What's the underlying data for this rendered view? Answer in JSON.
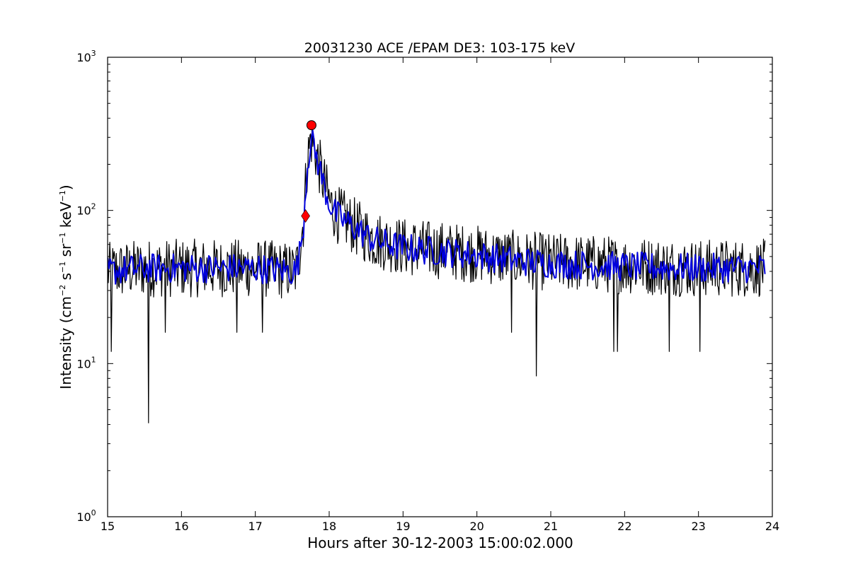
{
  "chart_data": {
    "type": "line",
    "title": "20031230 ACE /EPAM DE3: 103-175 keV",
    "xlabel": "Hours after 30-12-2003 15:00:02.000",
    "ylabel_parts": [
      "Intensity (cm",
      "−2",
      " s",
      "−1",
      " sr",
      "−1",
      " keV",
      "−1",
      ")"
    ],
    "xlim": [
      15,
      24
    ],
    "ylim": [
      1,
      1000
    ],
    "yscale": "log",
    "x_ticks": [
      "15",
      "16",
      "17",
      "18",
      "19",
      "20",
      "21",
      "22",
      "23",
      "24"
    ],
    "y_ticks": [
      {
        "base": "10",
        "exp": "0",
        "value": 1
      },
      {
        "base": "10",
        "exp": "1",
        "value": 10
      },
      {
        "base": "10",
        "exp": "2",
        "value": 100
      },
      {
        "base": "10",
        "exp": "3",
        "value": 1000
      }
    ],
    "grid": false,
    "series": [
      {
        "style": "raw",
        "color": "#000000",
        "x_start": 15.0,
        "x_end": 23.9,
        "values_approx": "noisy intensity ~25-65 baseline, rising from ~17.6 h to peak ~360 at 17.75 h, decaying to ~50 by 19 h",
        "envelope": [
          [
            15.0,
            40
          ],
          [
            15.5,
            42
          ],
          [
            16.0,
            42
          ],
          [
            16.5,
            42
          ],
          [
            17.0,
            42
          ],
          [
            17.55,
            40
          ],
          [
            17.6,
            55
          ],
          [
            17.65,
            85
          ],
          [
            17.7,
            200
          ],
          [
            17.75,
            300
          ],
          [
            17.8,
            260
          ],
          [
            17.85,
            210
          ],
          [
            17.9,
            170
          ],
          [
            17.95,
            140
          ],
          [
            18.0,
            115
          ],
          [
            18.1,
            95
          ],
          [
            18.2,
            88
          ],
          [
            18.4,
            75
          ],
          [
            18.6,
            65
          ],
          [
            19.0,
            58
          ],
          [
            19.5,
            55
          ],
          [
            20.0,
            52
          ],
          [
            20.5,
            48
          ],
          [
            21.0,
            46
          ],
          [
            22.0,
            44
          ],
          [
            23.0,
            42
          ],
          [
            23.9,
            42
          ]
        ],
        "dips": [
          [
            15.05,
            12
          ],
          [
            15.55,
            4.1
          ],
          [
            15.78,
            16
          ],
          [
            16.75,
            16
          ],
          [
            17.1,
            16
          ],
          [
            20.47,
            16
          ],
          [
            20.8,
            8.3
          ],
          [
            21.85,
            12
          ],
          [
            21.9,
            12
          ],
          [
            22.6,
            12
          ],
          [
            23.02,
            12
          ]
        ]
      },
      {
        "style": "smoothed",
        "color": "#0000dd",
        "x_start": 15.0,
        "x_end": 23.9,
        "envelope": [
          [
            15.0,
            40
          ],
          [
            15.5,
            42
          ],
          [
            16.0,
            42
          ],
          [
            16.5,
            42
          ],
          [
            17.0,
            42
          ],
          [
            17.55,
            40
          ],
          [
            17.6,
            52
          ],
          [
            17.65,
            80
          ],
          [
            17.7,
            190
          ],
          [
            17.75,
            290
          ],
          [
            17.8,
            255
          ],
          [
            17.85,
            205
          ],
          [
            17.9,
            165
          ],
          [
            17.95,
            135
          ],
          [
            18.0,
            112
          ],
          [
            18.1,
            93
          ],
          [
            18.2,
            86
          ],
          [
            18.4,
            74
          ],
          [
            18.6,
            64
          ],
          [
            19.0,
            57
          ],
          [
            19.5,
            54
          ],
          [
            20.0,
            51
          ],
          [
            20.5,
            47
          ],
          [
            21.0,
            45
          ],
          [
            22.0,
            43
          ],
          [
            23.0,
            42
          ],
          [
            23.9,
            42
          ]
        ]
      }
    ],
    "markers": [
      {
        "shape": "diamond",
        "color": "#ff0000",
        "x": 17.68,
        "y": 92
      },
      {
        "shape": "circle",
        "color": "#ff0000",
        "x": 17.76,
        "y": 360
      }
    ]
  }
}
